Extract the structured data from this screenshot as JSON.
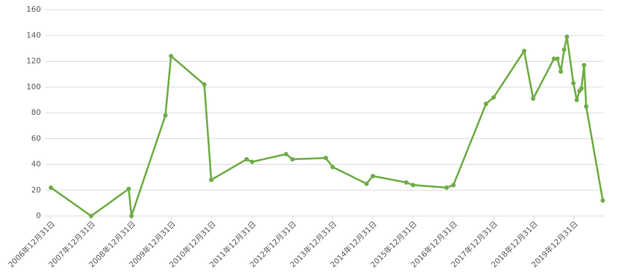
{
  "chart_data": {
    "type": "line",
    "x": [
      "2006-12-31",
      "2007-12-31",
      "2008-12-06",
      "2008-12-31",
      "2009-11-04",
      "2009-12-25",
      "2010-10-23",
      "2010-12-25",
      "2011-11-11",
      "2011-12-31",
      "2012-11-03",
      "2012-12-31",
      "2013-10-30",
      "2013-12-31",
      "2014-11-04",
      "2014-12-31",
      "2015-10-30",
      "2015-12-31",
      "2016-10-30",
      "2016-12-31",
      "2017-10-23",
      "2017-12-31",
      "2018-10-04",
      "2018-12-25",
      "2019-07-02",
      "2019-08-02",
      "2019-09-02",
      "2019-10-02",
      "2019-10-27",
      "2019-12-25",
      "2020-01-25",
      "2020-02-18",
      "2020-03-07",
      "2020-03-31",
      "2020-04-19",
      "2020-09-17"
    ],
    "values": [
      22,
      0,
      21,
      0,
      78,
      124,
      102,
      28,
      44,
      42,
      48,
      44,
      45,
      38,
      25,
      31,
      26,
      24,
      22,
      24,
      87,
      92,
      128,
      91,
      122,
      122,
      112,
      129,
      139,
      103,
      90,
      97,
      99,
      117,
      85,
      12
    ],
    "color": "#70ad47",
    "xlim": [
      "2006-11-08",
      "2020-09-24"
    ],
    "ylim": [
      0,
      160
    ],
    "xticks": [
      {
        "value": "2006-12-31",
        "label": "2006年12月31日"
      },
      {
        "value": "2007-12-31",
        "label": "2007年12月31日"
      },
      {
        "value": "2008-12-31",
        "label": "2008年12月31日"
      },
      {
        "value": "2009-12-31",
        "label": "2009年12月31日"
      },
      {
        "value": "2010-12-31",
        "label": "2010年12月31日"
      },
      {
        "value": "2011-12-31",
        "label": "2011年12月31日"
      },
      {
        "value": "2012-12-31",
        "label": "2012年12月31日"
      },
      {
        "value": "2013-12-31",
        "label": "2013年12月31日"
      },
      {
        "value": "2014-12-31",
        "label": "2014年12月31日"
      },
      {
        "value": "2015-12-31",
        "label": "2015年12月31日"
      },
      {
        "value": "2016-12-31",
        "label": "2016年12月31日"
      },
      {
        "value": "2017-12-31",
        "label": "2017年12月31日"
      },
      {
        "value": "2018-12-31",
        "label": "2018年12月31日"
      },
      {
        "value": "2019-12-31",
        "label": "2019年12月31日"
      }
    ],
    "yticks": [
      0,
      20,
      40,
      60,
      80,
      100,
      120,
      140,
      160
    ],
    "grid": true
  }
}
